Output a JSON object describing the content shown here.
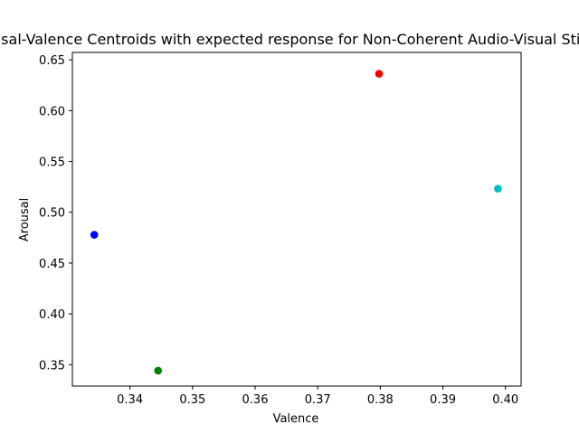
{
  "chart_data": {
    "type": "scatter",
    "title": "Arousal-Valence Centroids with expected response for Non-Coherent Audio-Visual Stimuli",
    "xlabel": "Valence",
    "ylabel": "Arousal",
    "xlim": [
      0.3308,
      0.4025
    ],
    "ylim": [
      0.3289,
      0.6573
    ],
    "xticks": [
      0.34,
      0.35,
      0.36,
      0.37,
      0.38,
      0.39,
      0.4
    ],
    "xtick_labels": [
      "0.34",
      "0.35",
      "0.36",
      "0.37",
      "0.38",
      "0.39",
      "0.40"
    ],
    "yticks": [
      0.35,
      0.4,
      0.45,
      0.5,
      0.55,
      0.6,
      0.65
    ],
    "ytick_labels": [
      "0.35",
      "0.40",
      "0.45",
      "0.50",
      "0.55",
      "0.60",
      "0.65"
    ],
    "grid": false,
    "legend": "none",
    "points": [
      {
        "x": 0.3343,
        "y": 0.4778,
        "color": "#0000ff"
      },
      {
        "x": 0.3445,
        "y": 0.3441,
        "color": "#008000"
      },
      {
        "x": 0.3798,
        "y": 0.6363,
        "color": "#ff0000"
      },
      {
        "x": 0.3988,
        "y": 0.5232,
        "color": "#00bfbf"
      }
    ]
  }
}
